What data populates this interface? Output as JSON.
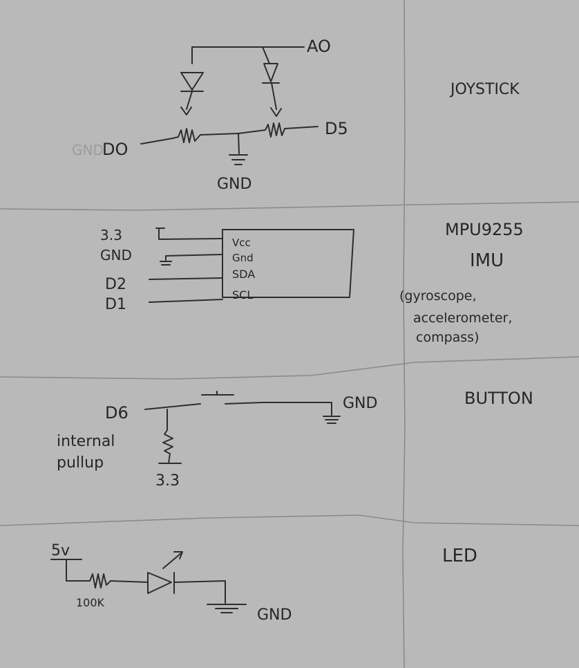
{
  "joystick": {
    "title": "JOYSTICK",
    "a0": "AO",
    "d0": "DO",
    "d5": "D5",
    "gnd": "GND",
    "erased": "GND"
  },
  "imu": {
    "title_line1": "MPU9255",
    "title_line2": "IMU",
    "desc_line1": "(gyroscope,",
    "desc_line2": "accelerometer,",
    "desc_line3": "compass)",
    "pin_33": "3.3",
    "pin_gnd": "GND",
    "pin_d2": "D2",
    "pin_d1": "D1",
    "chip_vcc": "Vcc",
    "chip_gnd": "Gnd",
    "chip_sda": "SDA",
    "chip_scl": "SCL"
  },
  "button": {
    "title": "BUTTON",
    "pin": "D6",
    "gnd": "GND",
    "note_line1": "internal",
    "note_line2": "pullup",
    "supply": "3.3"
  },
  "led": {
    "title": "LED",
    "supply": "5v",
    "resistor": "100K",
    "gnd": "GND"
  }
}
